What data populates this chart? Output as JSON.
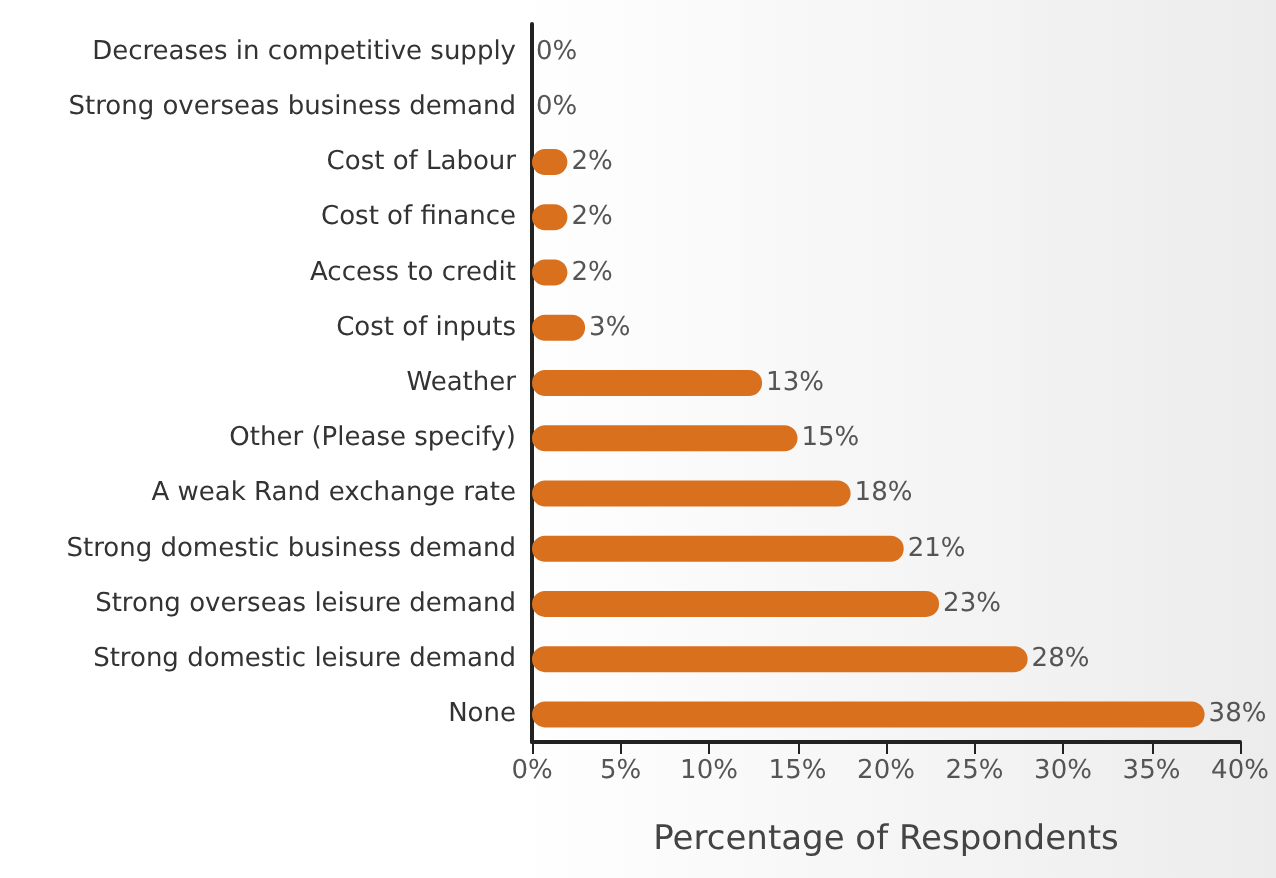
{
  "chart_data": {
    "type": "bar",
    "orientation": "horizontal",
    "xlabel": "Percentage of Respondents",
    "categories": [
      "Decreases in competitive supply",
      "Strong overseas business demand",
      "Cost of Labour",
      "Cost of finance",
      "Access to credit",
      "Cost of inputs",
      "Weather",
      "Other (Please specify)",
      "A weak Rand exchange rate",
      "Strong domestic business demand",
      "Strong overseas leisure demand",
      "Strong domestic leisure demand",
      "None"
    ],
    "values": [
      0,
      0,
      2,
      2,
      2,
      3,
      13,
      15,
      18,
      21,
      23,
      28,
      38
    ],
    "value_labels": [
      "0%",
      "0%",
      "2%",
      "2%",
      "2%",
      "3%",
      "13%",
      "15%",
      "18%",
      "21%",
      "23%",
      "28%",
      "38%"
    ],
    "color": "#d9701e",
    "xlim": [
      0,
      40
    ],
    "xticks": [
      {
        "value": 0,
        "label": "0%"
      },
      {
        "value": 5,
        "label": "5%"
      },
      {
        "value": 10,
        "label": "10%"
      },
      {
        "value": 15,
        "label": "15%"
      },
      {
        "value": 20,
        "label": "20%"
      },
      {
        "value": 25,
        "label": "25%"
      },
      {
        "value": 30,
        "label": "30%"
      },
      {
        "value": 35,
        "label": "35%"
      },
      {
        "value": 40,
        "label": "40%"
      }
    ],
    "grid": false
  }
}
